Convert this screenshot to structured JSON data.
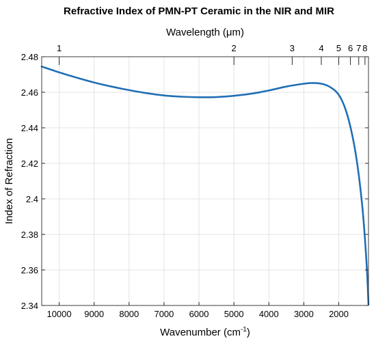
{
  "chart_data": {
    "type": "line",
    "title": "Refractive Index of PMN-PT Ceramic in the NIR and MIR",
    "xlabel": "Wavenumber (cm",
    "xlabel_sup": "-1",
    "xlabel_close": ")",
    "ylabel": "Index of Refraction",
    "x2label": "Wavelength (μm)",
    "xlim": [
      10500,
      1150
    ],
    "ylim": [
      2.34,
      2.48
    ],
    "x_reversed": true,
    "grid": true,
    "line_color": "#1f6fb5",
    "x_ticks": [
      10000,
      9000,
      8000,
      7000,
      6000,
      5000,
      4000,
      3000,
      2000
    ],
    "x_tick_labels": [
      "10000",
      "9000",
      "8000",
      "7000",
      "6000",
      "5000",
      "4000",
      "3000",
      "2000"
    ],
    "y_ticks": [
      2.34,
      2.36,
      2.38,
      2.4,
      2.42,
      2.44,
      2.46,
      2.48
    ],
    "y_tick_labels": [
      "2.34",
      "2.36",
      "2.38",
      "2.4",
      "2.42",
      "2.44",
      "2.46",
      "2.48"
    ],
    "top_ticks_um": [
      1,
      2,
      3,
      4,
      5,
      6,
      7,
      8
    ],
    "top_tick_labels": [
      "1",
      "2",
      "3",
      "4",
      "5",
      "6",
      "7",
      "8"
    ],
    "series": [
      {
        "x": [
          10500,
          10000,
          9500,
          9000,
          8500,
          8000,
          7500,
          7000,
          6500,
          6000,
          5500,
          5000,
          4500,
          4000,
          3500,
          3000,
          2750,
          2500,
          2300,
          2100,
          2000,
          1900,
          1800,
          1700,
          1600,
          1500,
          1400,
          1300,
          1200,
          1150
        ],
        "y": [
          2.4745,
          2.4712,
          2.4682,
          2.4655,
          2.4632,
          2.4612,
          2.4595,
          2.4582,
          2.4575,
          2.4572,
          2.4573,
          2.458,
          2.4592,
          2.461,
          2.4632,
          2.4648,
          2.4652,
          2.4648,
          2.4635,
          2.4608,
          2.4585,
          2.455,
          2.45,
          2.4432,
          2.4345,
          2.4235,
          2.409,
          2.39,
          2.362,
          2.3405
        ]
      }
    ]
  }
}
